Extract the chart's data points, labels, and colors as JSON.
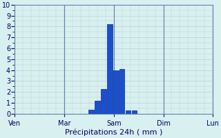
{
  "title": "Précipitations 24h ( mm )",
  "background_color": "#d8f0f0",
  "grid_color": "#b8d0d0",
  "bar_color": "#1a50d0",
  "bar_edge_color": "#0a2a8a",
  "xlim": [
    0,
    96
  ],
  "ylim": [
    0,
    10
  ],
  "yticks": [
    0,
    1,
    2,
    3,
    4,
    5,
    6,
    7,
    8,
    9,
    10
  ],
  "day_labels": [
    "Ven",
    "Mar",
    "Sam",
    "Dim",
    "Lun"
  ],
  "day_positions": [
    0,
    24,
    48,
    72,
    96
  ],
  "bar_positions": [
    37,
    40,
    43,
    46,
    49,
    52,
    55,
    58
  ],
  "bar_heights": [
    0.4,
    1.2,
    2.3,
    8.2,
    4.0,
    4.1,
    0.3,
    0.3
  ],
  "bar_width": 2.5,
  "vline_color": "#6080b0",
  "spine_color": "#6080b0",
  "label_color": "#000060",
  "xlabel_fontsize": 8,
  "tick_fontsize": 7
}
